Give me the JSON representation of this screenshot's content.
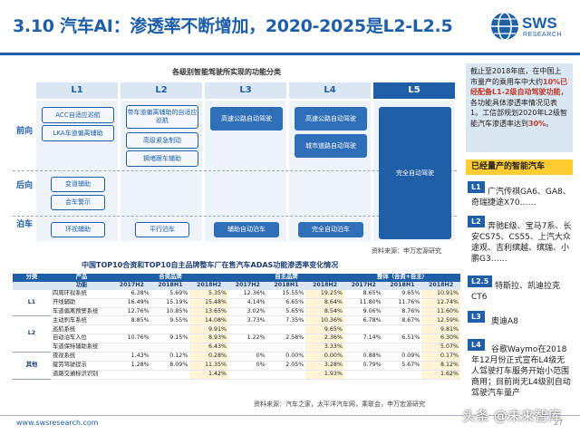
{
  "header": {
    "title": "3.10 汽车AI：渗透率不断增加，2020-2025是L2-L2.5",
    "logo_brand": "SWS",
    "logo_sub": "RESEARCH"
  },
  "diagram": {
    "title": "各级别智能驾驶所实现的功能分类",
    "levels": [
      "L1",
      "L2",
      "L3",
      "L4",
      "L5"
    ],
    "rows": [
      "前向",
      "后向",
      "泊车"
    ],
    "front": {
      "l1": [
        "ACC自适应巡航",
        "LKA车道偏离辅助"
      ],
      "l2": [
        "带车道偏离辅助的自适应巡航",
        "高级紧急制动",
        "拥堵跟车辅助"
      ],
      "l3": "高速公路自动驾驶",
      "l4": [
        "高速公路自动驾驶",
        "城市道路自动驾驶"
      ],
      "l5": "完全自动驾驶"
    },
    "rear": {
      "l1": [
        "变道辅助",
        "会车警示"
      ]
    },
    "parking": {
      "l1": "环视辅助",
      "l2": "平行泊车",
      "l3": "辅助自动泊车",
      "l4": "完全自动泊车"
    },
    "source": "资料来源：申万宏源研究"
  },
  "table": {
    "title": "中国TOP10合资和TOP10自主品牌整车厂在售汽车ADAS功能渗透率变化情况",
    "col_category": "分类",
    "col_product": "产品",
    "col_function": "功能",
    "groups": [
      "合资品牌",
      "自主品牌",
      "整体（合资+自主）"
    ],
    "periods": [
      "2017H2",
      "2018H1",
      "2018H2",
      "2017H2",
      "2018H1",
      "2018H2",
      "2017H2",
      "2018H1",
      "2018H2"
    ],
    "rows": [
      {
        "cat": "",
        "name": "四周环视系统",
        "v": [
          "6.38%",
          "5.69%",
          "5.35%",
          "12.36%",
          "15.55%",
          "19.25%",
          "8.65%",
          "9.65%",
          "10.91%"
        ]
      },
      {
        "cat": "L1",
        "name": "开线辅助",
        "v": [
          "16.49%",
          "15.19%",
          "15.48%",
          "4.14%",
          "6.65%",
          "8.64%",
          "11.80%",
          "11.76%",
          "12.74%"
        ]
      },
      {
        "cat": "",
        "name": "车道偏离预警系统",
        "v": [
          "12.76%",
          "10.85%",
          "13.65%",
          "3.02%",
          "5.65%",
          "8.54%",
          "9.06%",
          "8.76%",
          "11.60%"
        ]
      },
      {
        "cat": "",
        "name": "主动刹车系统",
        "v": [
          "8.85%",
          "9.55%",
          "14.08%",
          "3.73%",
          "7.35%",
          "10.36%",
          "6.78%",
          "8.67%",
          "12.59%"
        ]
      },
      {
        "cat": "L2",
        "name": "巡航系统",
        "v": [
          "",
          "",
          "9.91%",
          "",
          "",
          "9.65%",
          "",
          "",
          "9.81%"
        ]
      },
      {
        "cat": "",
        "name": "自动泊车入位",
        "v": [
          "10.76%",
          "9.15%",
          "8.93%",
          "1.22%",
          "2.58%",
          "2.36%",
          "7.14%",
          "6.51%",
          "6.30%"
        ]
      },
      {
        "cat": "",
        "name": "车道保持辅助系统",
        "v": [
          "",
          "",
          "6.43%",
          "",
          "",
          "3.33%",
          "",
          "",
          "5.07%"
        ]
      },
      {
        "cat": "",
        "name": "夜视系统",
        "v": [
          "1.43%",
          "0.12%",
          "0.28%",
          "0%",
          "0.00%",
          "0.00%",
          "0.88%",
          "0.09%",
          "0.17%"
        ]
      },
      {
        "cat": "其他",
        "name": "疲劳驾驶提示",
        "v": [
          "1.28%",
          "8.09%",
          "11.35%",
          "0%",
          "2.05%",
          "3.28%",
          "0.79%",
          "5.67%",
          "8.12%"
        ]
      },
      {
        "cat": "",
        "name": "道路交通标识识别",
        "v": [
          "",
          "",
          "1.42%",
          "",
          "",
          "1.93%",
          "",
          "",
          "1.62%"
        ]
      }
    ],
    "source": "资料来源：汽车之家，太平洋汽车网，乘联会，申万宏源研究"
  },
  "sidebar": {
    "intro_parts": [
      "截止至2018年底，在中国上市量产的乘用车中大约",
      "10%已经配备L1-2级自动驾驶功能",
      "，各功能具体渗透率情况见表1。工信部规划2020年L2级智能汽车渗透率达到",
      "30%",
      "。"
    ],
    "banner": "已经量产的智能汽车",
    "items": [
      {
        "tag": "L1",
        "text": "广汽传祺GA6、GA8、奇瑞捷途X70……"
      },
      {
        "tag": "L2",
        "text": "奔驰E级、宝马7系、长安CS75、CS55、上汽大众途观、吉利缤越、缤瑞、小鹏G3……"
      },
      {
        "tag": "L2.5",
        "text": "特斯拉、凯迪拉克CT6"
      },
      {
        "tag": "L3",
        "text": "奥迪A8"
      },
      {
        "tag": "L4",
        "text": "谷歌Waymo在2018年12月份正式宣布L4级无人驾驶打车服务开始小范围商用；目前尚无L4级别自动驾驶汽车量产"
      }
    ]
  },
  "footer": {
    "url": "www.swsresearch.com",
    "page": "27",
    "watermark": "头条 @未来智库"
  }
}
